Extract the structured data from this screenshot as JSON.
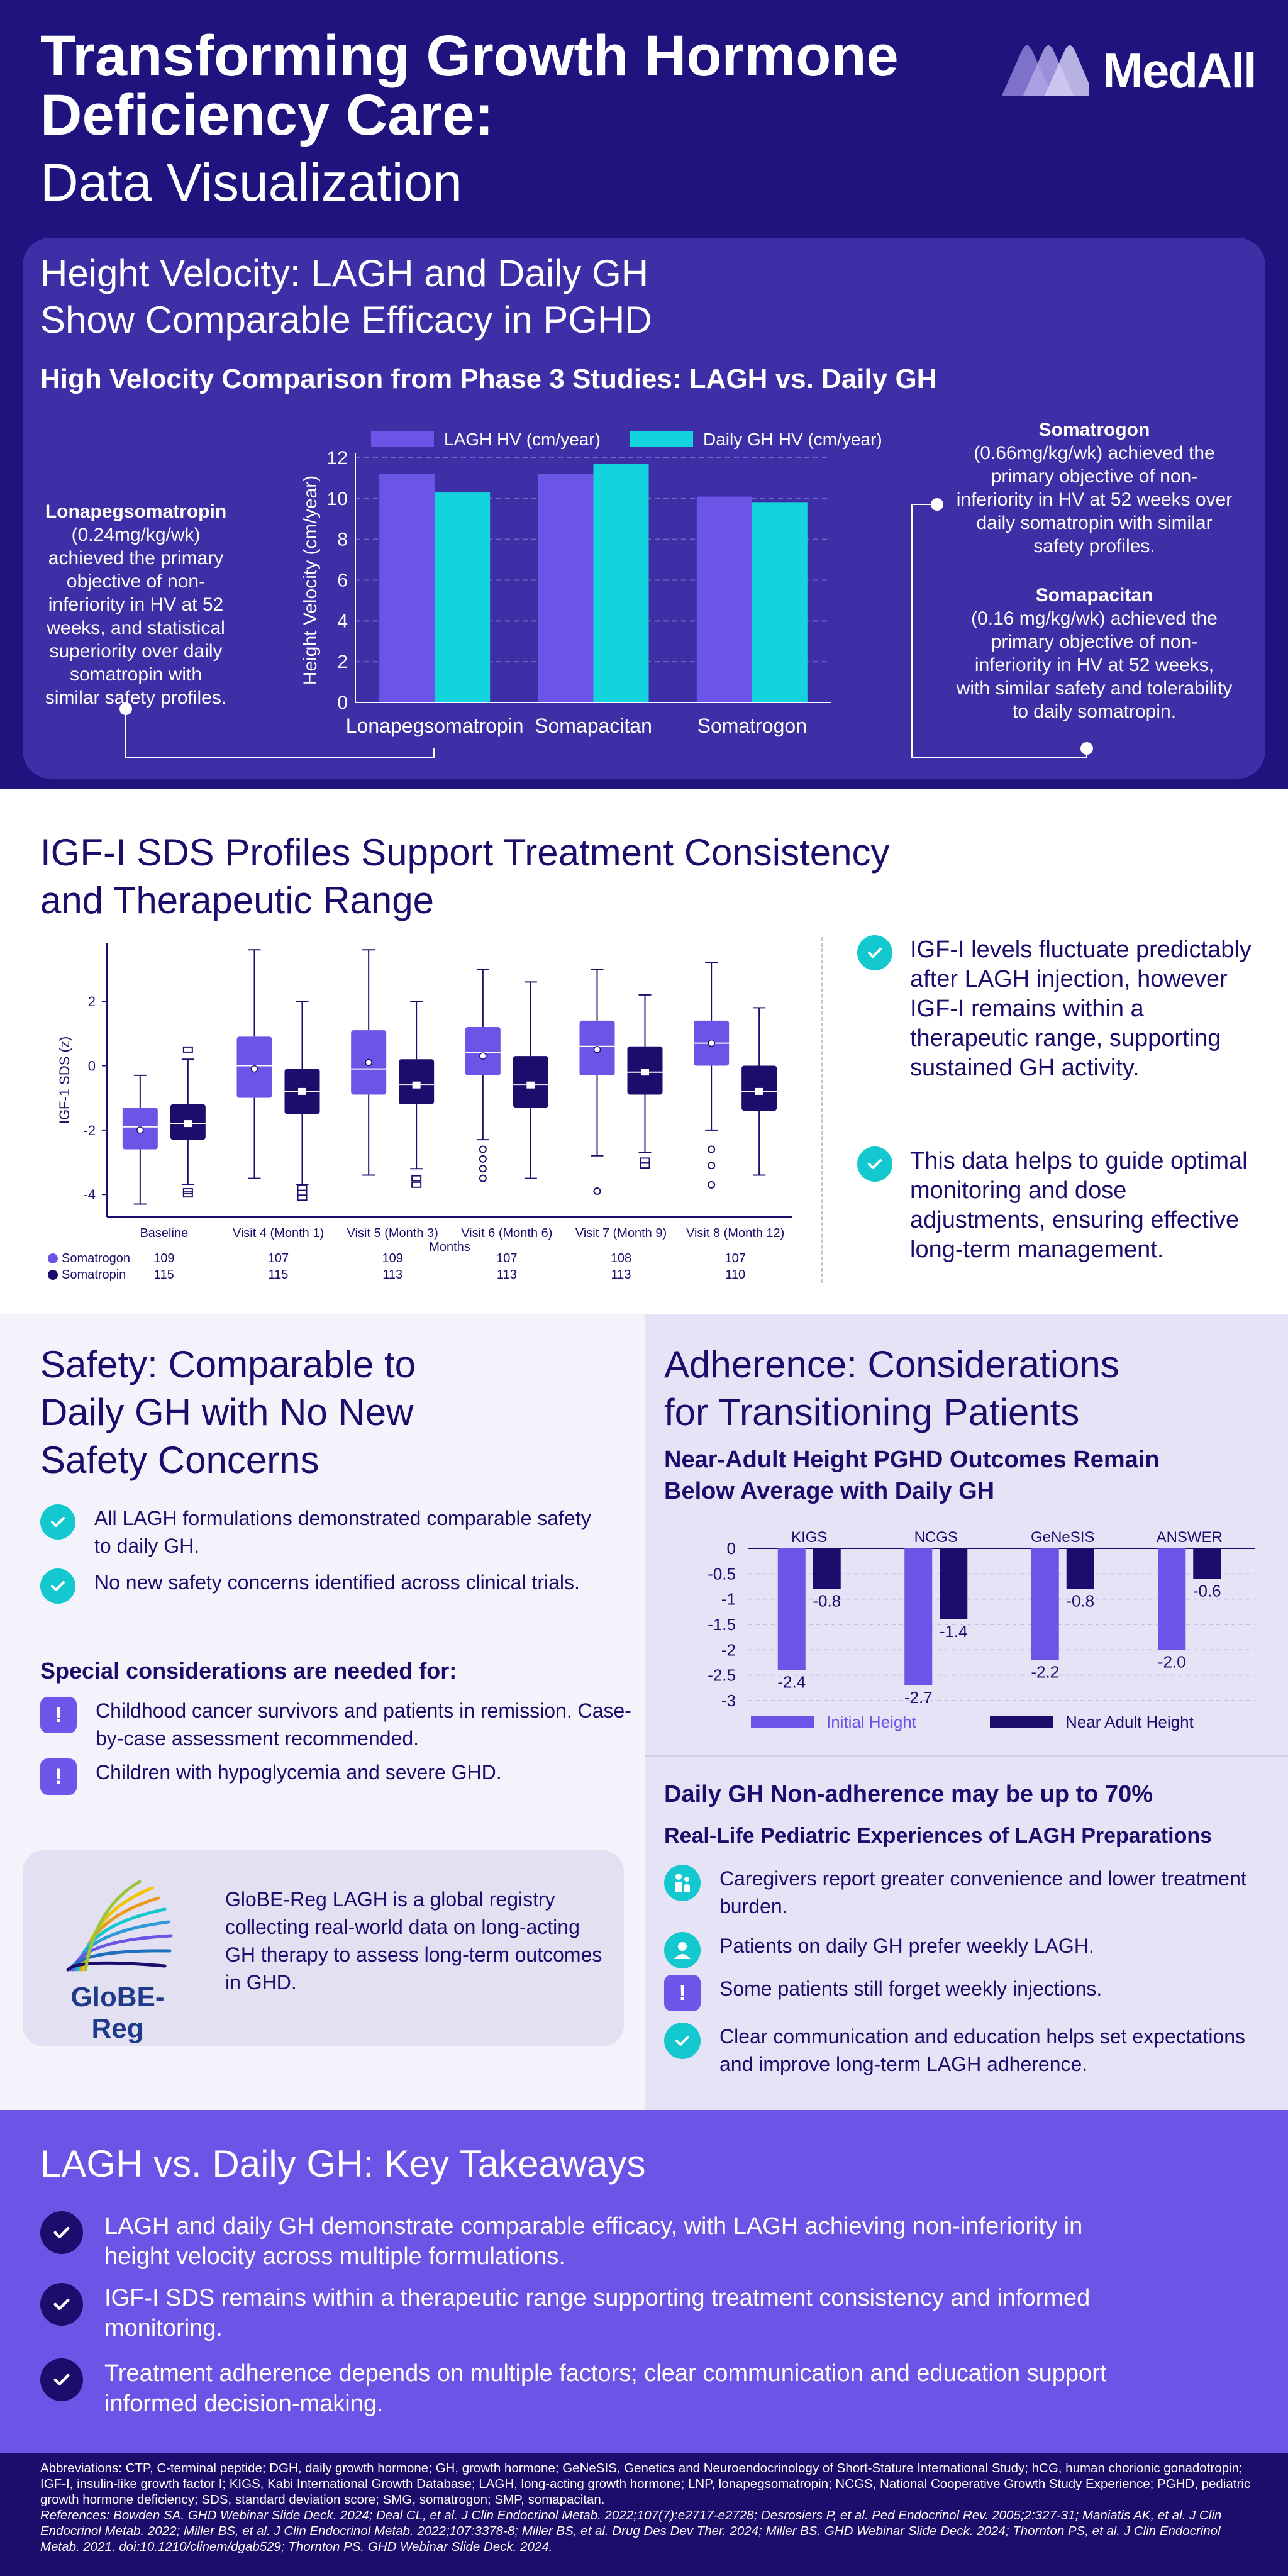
{
  "brand": {
    "name": "MedAll"
  },
  "hero": {
    "title": "Transforming Growth Hormone Deficiency Care:",
    "subtitle": "Data Visualization"
  },
  "height_velocity": {
    "heading_line1": "Height Velocity: LAGH and Daily GH",
    "heading_line2": "Show Comparable Efficacy in PGHD",
    "chart_title": "High Velocity Comparison from Phase 3 Studies: LAGH vs. Daily GH",
    "annotations": {
      "lonapeg": {
        "name": "Lonapegsomatropin",
        "text": "(0.24mg/kg/wk) achieved the primary objective of non-inferiority in HV at 52 weeks, and statistical superiority over daily somatropin with similar safety profiles."
      },
      "somatrogon": {
        "name": "Somatrogon",
        "text": "(0.66mg/kg/wk) achieved the primary objective of non-inferiority in HV at 52 weeks over daily somatropin with similar safety profiles."
      },
      "somapacitan": {
        "name": "Somapacitan",
        "text": "(0.16 mg/kg/wk) achieved the primary objective of non-inferiority in HV at 52 weeks, with similar safety and tolerability to daily somatropin."
      }
    }
  },
  "igf": {
    "heading_line1": "IGF-I SDS Profiles Support Treatment Consistency",
    "heading_line2": "and Therapeutic Range",
    "bullets": [
      "IGF-I levels fluctuate predictably after LAGH injection, however IGF-I remains within a therapeutic range, supporting sustained GH activity.",
      "This data helps to guide optimal monitoring and dose adjustments, ensuring effective long-term management."
    ],
    "n_labels": {
      "somatrogon": "Somatrogon",
      "somatropin": "Somatropin"
    }
  },
  "safety": {
    "heading_lines": [
      "Safety: Comparable to",
      "Daily GH with No New",
      "Safety Concerns"
    ],
    "bullets": [
      "All LAGH formulations demonstrated comparable safety to daily GH.",
      "No new safety concerns identified across clinical trials."
    ],
    "special_heading": "Special considerations are needed for:",
    "special_items": [
      "Childhood cancer survivors and patients in remission. Case-by-case assessment recommended.",
      "Children with hypoglycemia and severe GHD."
    ],
    "registry": {
      "logo_text": "GloBE-Reg",
      "text": "GloBE-Reg LAGH is a global registry collecting real-world data on long-acting GH therapy to assess long-term outcomes in GHD."
    }
  },
  "adherence": {
    "heading_lines": [
      "Adherence: Considerations",
      "for Transitioning Patients"
    ],
    "chart_title_lines": [
      "Near-Adult Height PGHD Outcomes Remain",
      "Below Average with Daily GH"
    ],
    "nonadherence": "Daily GH Non-adherence may be up to 70%",
    "real_life": "Real-Life Pediatric Experiences of LAGH Preparations",
    "items": [
      "Caregivers report greater convenience and lower treatment burden.",
      "Patients on daily GH prefer weekly LAGH.",
      "Some patients still forget weekly injections.",
      "Clear communication and education helps set expectations and improve long-term LAGH adherence."
    ]
  },
  "takeaways": {
    "heading": "LAGH vs. Daily GH: Key Takeaways",
    "items": [
      "LAGH and daily GH demonstrate comparable efficacy, with LAGH achieving non-inferiority in height velocity across multiple formulations.",
      "IGF-I SDS remains within a therapeutic range supporting treatment consistency and informed monitoring.",
      "Treatment adherence depends on multiple factors; clear communication and education support informed decision-making."
    ]
  },
  "footer": {
    "abbreviations": "Abbreviations: CTP, C-terminal peptide; DGH, daily growth hormone; GH, growth hormone; GeNeSIS, Genetics and Neuroendocrinology of Short-Stature International Study; hCG, human chorionic gonadotropin; IGF-I, insulin-like growth factor I; KIGS, Kabi International Growth Database; LAGH, long-acting growth hormone; LNP, lonapegsomatropin; NCGS, National Cooperative Growth Study Experience; PGHD, pediatric growth hormone deficiency; SDS, standard deviation score; SMG, somatrogon; SMP, somapacitan.",
    "references": "References: Bowden SA. GHD Webinar Slide Deck. 2024; Deal CL, et al. J Clin Endocrinol Metab. 2022;107(7):e2717-e2728; Desrosiers P, et al. Ped Endocrinol Rev. 2005;2:327-31; Maniatis AK, et al. J Clin Endocrinol Metab. 2022; Miller BS, et al. J Clin Endocrinol Metab. 2022;107:3378-8; Miller BS, et al. Drug Des Dev Ther. 2024; Miller BS. GHD Webinar Slide Deck. 2024; Thornton PS, et al. J Clin Endocrinol Metab. 2021. doi:10.1210/clinem/dgab529; Thornton PS. GHD Webinar Slide Deck. 2024."
  },
  "colors": {
    "navy": "#1a0d6b",
    "purple": "#6a55e6",
    "cyan": "#13c8cf"
  },
  "chart_data": [
    {
      "type": "bar",
      "title": "High Velocity Comparison from Phase 3 Studies: LAGH vs. Daily GH",
      "ylabel": "Height Velocity (cm/year)",
      "ylim": [
        0,
        12
      ],
      "yticks": [
        "0",
        "2",
        "4",
        "6",
        "8",
        "10",
        "12"
      ],
      "categories": [
        "Lonapegsomatropin",
        "Somapacitan",
        "Somatrogon"
      ],
      "series": [
        {
          "name": "LAGH HV (cm/year)",
          "color": "#6a55e6",
          "values": [
            11.2,
            11.2,
            10.1
          ]
        },
        {
          "name": "Daily GH HV (cm/year)",
          "color": "#13d4dc",
          "values": [
            10.3,
            11.7,
            9.8
          ]
        }
      ],
      "grid": true,
      "legend": "top"
    },
    {
      "type": "box",
      "ylabel": "IGF-1 SDS (z)",
      "xlabel": "Months",
      "ylim": [
        -4.7,
        3.8
      ],
      "yticks": [
        "2",
        "0",
        "-2",
        "-4"
      ],
      "categories": [
        "Baseline",
        "Visit 4 (Month 1)",
        "Visit 5 (Month 3)",
        "Visit 6 (Month 6)",
        "Visit 7 (Month 9)",
        "Visit 8 (Month 12)"
      ],
      "series": [
        {
          "name": "Somatrogon",
          "color": "#6a55e6",
          "n": [
            "109",
            "107",
            "109",
            "107",
            "108",
            "107"
          ],
          "boxes": [
            {
              "wlo": -4.3,
              "q1": -2.6,
              "med": -1.9,
              "q3": -1.3,
              "whi": -0.3,
              "mean": -2.0,
              "outliers": []
            },
            {
              "wlo": -3.5,
              "q1": -1.0,
              "med": 0.0,
              "q3": 0.9,
              "whi": 3.6,
              "mean": -0.1,
              "outliers": []
            },
            {
              "wlo": -3.4,
              "q1": -0.9,
              "med": -0.1,
              "q3": 1.1,
              "whi": 3.6,
              "mean": 0.1,
              "outliers": []
            },
            {
              "wlo": -2.3,
              "q1": -0.3,
              "med": 0.4,
              "q3": 1.2,
              "whi": 3.0,
              "mean": 0.3,
              "outliers": [
                -2.6,
                -2.9,
                -3.2,
                -3.5
              ]
            },
            {
              "wlo": -2.8,
              "q1": -0.3,
              "med": 0.6,
              "q3": 1.4,
              "whi": 3.0,
              "mean": 0.5,
              "outliers": [
                -3.9
              ]
            },
            {
              "wlo": -2.0,
              "q1": 0.0,
              "med": 0.7,
              "q3": 1.4,
              "whi": 3.2,
              "mean": 0.7,
              "outliers": [
                -2.6,
                -3.1,
                -3.7
              ]
            }
          ]
        },
        {
          "name": "Somatropin",
          "color": "#1a0d6b",
          "n": [
            "115",
            "115",
            "113",
            "113",
            "113",
            "110"
          ],
          "boxes": [
            {
              "wlo": -3.7,
              "q1": -2.3,
              "med": -1.8,
              "q3": -1.2,
              "whi": 0.2,
              "mean": -1.8,
              "outliers": [
                -3.9,
                -4.0,
                0.5
              ]
            },
            {
              "wlo": -3.7,
              "q1": -1.5,
              "med": -0.8,
              "q3": -0.1,
              "whi": 2.0,
              "mean": -0.8,
              "outliers": [
                -3.8,
                -3.95,
                -4.1
              ]
            },
            {
              "wlo": -3.2,
              "q1": -1.2,
              "med": -0.6,
              "q3": 0.2,
              "whi": 2.0,
              "mean": -0.6,
              "outliers": [
                -3.5,
                -3.7
              ]
            },
            {
              "wlo": -3.5,
              "q1": -1.3,
              "med": -0.6,
              "q3": 0.3,
              "whi": 2.6,
              "mean": -0.6,
              "outliers": []
            },
            {
              "wlo": -2.7,
              "q1": -0.9,
              "med": -0.2,
              "q3": 0.6,
              "whi": 2.2,
              "mean": -0.2,
              "outliers": [
                -2.95,
                -3.1
              ]
            },
            {
              "wlo": -3.4,
              "q1": -1.4,
              "med": -0.8,
              "q3": 0.0,
              "whi": 1.8,
              "mean": -0.8,
              "outliers": []
            }
          ]
        }
      ],
      "legend": "bottom-left"
    },
    {
      "type": "bar",
      "title": "Near-Adult Height PGHD Outcomes Remain Below Average with Daily GH",
      "ylim": [
        -3,
        0
      ],
      "yticks": [
        "0",
        "-0.5",
        "-1",
        "-1.5",
        "-2",
        "-2.5",
        "-3"
      ],
      "categories": [
        "KIGS",
        "NCGS",
        "GeNeSIS",
        "ANSWER"
      ],
      "series": [
        {
          "name": "Initial Height",
          "color": "#6a55e6",
          "values": [
            -2.4,
            -2.7,
            -2.2,
            -2.0
          ],
          "labels": [
            "-2.4",
            "-2.7",
            "-2.2",
            "-2.0"
          ]
        },
        {
          "name": "Near Adult Height",
          "color": "#1a0d6b",
          "values": [
            -0.8,
            -1.4,
            -0.8,
            -0.6
          ],
          "labels": [
            "-0.8",
            "-1.4",
            "-0.8",
            "-0.6"
          ]
        }
      ],
      "legend": "bottom"
    }
  ]
}
